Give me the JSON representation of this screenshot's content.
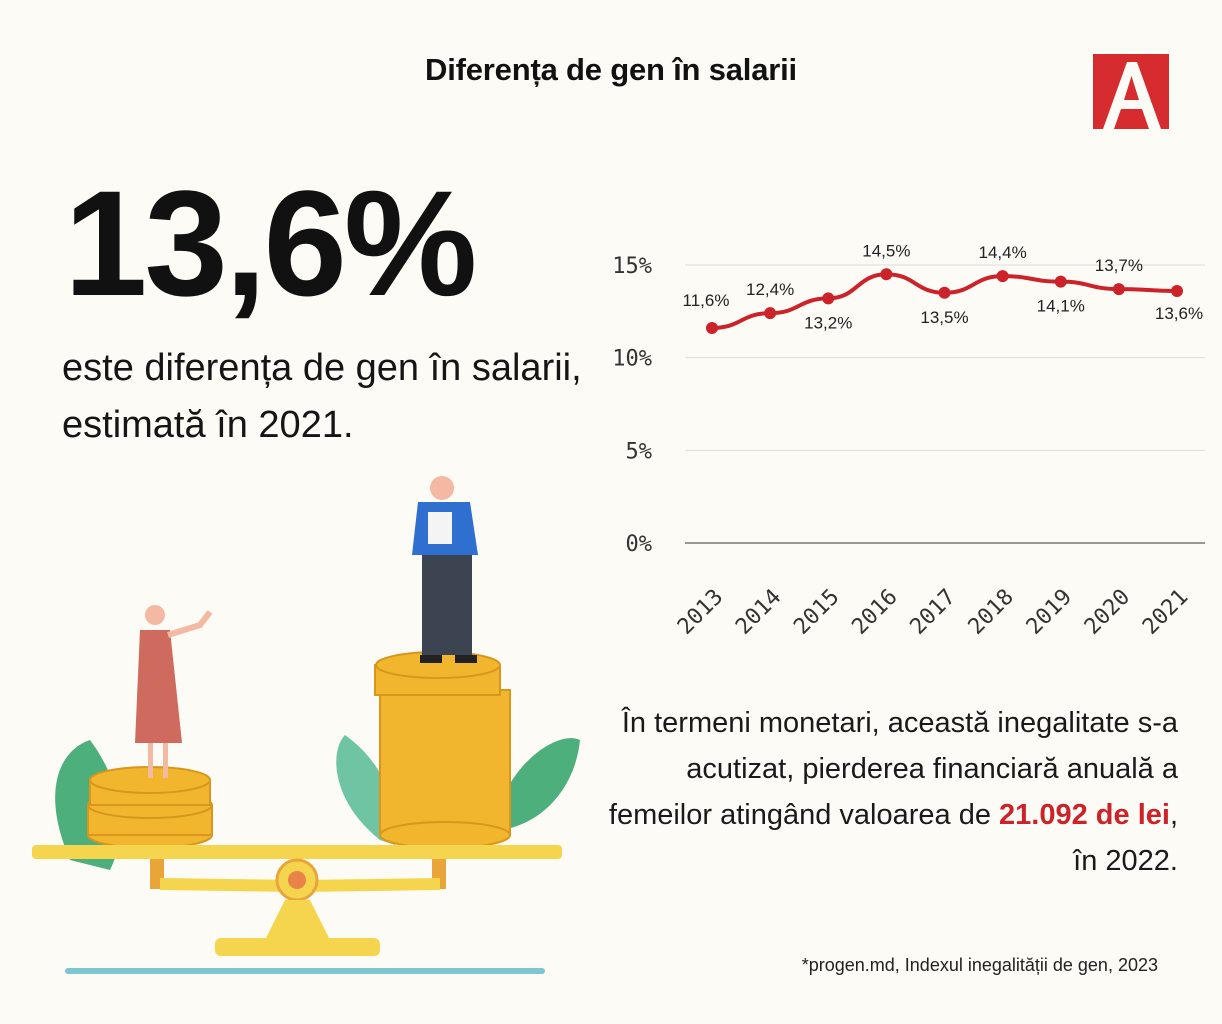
{
  "header": {
    "title": "Diferența de gen în salarii"
  },
  "logo": {
    "letter": "A",
    "color": "#d62b2f"
  },
  "headline": {
    "value": "13,6%",
    "text": "este diferența de gen în salarii, estimată în 2021."
  },
  "description": {
    "before": "În termeni monetari, această inegalitate s-a acutizat, pierderea financiară anuală a femeilor atingând valoarea de ",
    "highlight": "21.092 de lei",
    "after": ", în 2022."
  },
  "source": "*progen.md, Indexul inegalității de gen, 2023",
  "colors": {
    "line": "#cc2229",
    "highlight": "#cc2229",
    "background": "#fcfbf5",
    "grid": "#dddddd"
  },
  "chart_data": {
    "type": "line",
    "title": "",
    "xlabel": "",
    "ylabel": "",
    "categories": [
      "2013",
      "2014",
      "2015",
      "2016",
      "2017",
      "2018",
      "2019",
      "2020",
      "2021"
    ],
    "series": [
      {
        "values": [
          11.6,
          12.4,
          13.2,
          14.5,
          13.5,
          14.4,
          14.1,
          13.7,
          13.6
        ],
        "labels": [
          "11,6%",
          "12,4%",
          "13,2%",
          "14,5%",
          "13,5%",
          "14,4%",
          "14,1%",
          "13,7%",
          "13,6%"
        ]
      }
    ],
    "yticks": [
      0,
      5,
      10,
      15
    ],
    "ytick_labels": [
      "0%",
      "5%",
      "10%",
      "15%"
    ],
    "ylim": [
      0,
      15
    ],
    "grid": true,
    "legend": "none"
  }
}
